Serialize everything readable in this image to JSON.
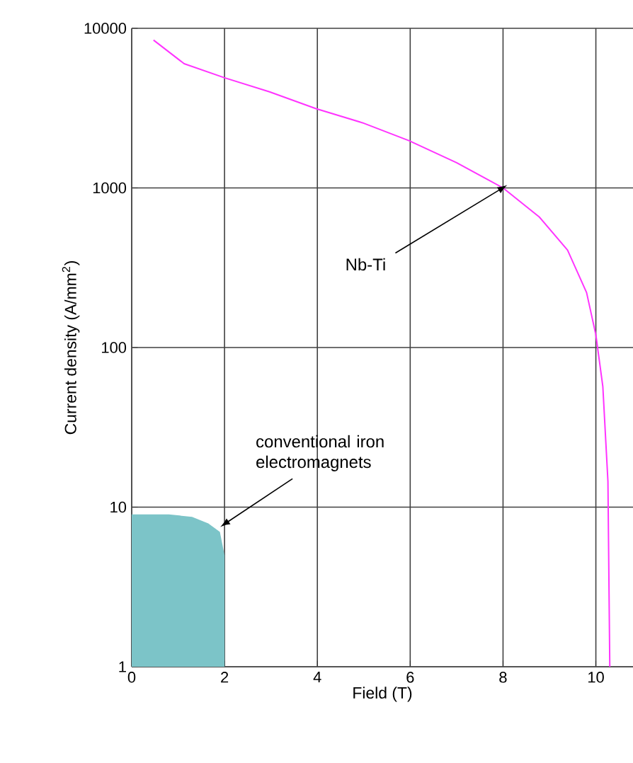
{
  "chart_data": {
    "type": "line",
    "xlabel": "Field  (T)",
    "ylabel": "Current density (A/mm$^{2}$)",
    "log": "y",
    "grid": true,
    "xlim": [
      0,
      10.8
    ],
    "ylim": [
      1,
      10000
    ],
    "xticks": [
      0,
      2,
      4,
      6,
      8,
      10
    ],
    "yticks": [
      1,
      10,
      100,
      1000,
      10000
    ],
    "series": [
      {
        "color": "#ff33ff",
        "x": [
          0.47,
          1.13,
          2.0,
          2.97,
          3.97,
          4.97,
          5.97,
          7.0,
          8.0,
          8.78,
          9.39,
          9.8,
          10.0,
          10.15,
          10.26,
          10.3
        ],
        "values": [
          8440,
          6000,
          4900,
          4000,
          3140,
          2560,
          1980,
          1440,
          1000,
          658,
          408,
          221,
          120,
          57,
          14.5,
          1
        ]
      },
      {
        "type": "area",
        "color": "#7cc4c8",
        "x": [
          0,
          0.8,
          1.3,
          1.65,
          1.9,
          2.0,
          2.0
        ],
        "values": [
          9,
          9,
          8.7,
          7.9,
          7,
          5,
          1
        ]
      }
    ],
    "annotations": [
      {
        "text": "Nb-Ti",
        "x": 8,
        "y": 1000
      },
      {
        "text": "conventional iron electromagnets",
        "x": 2,
        "y": 8
      }
    ]
  }
}
